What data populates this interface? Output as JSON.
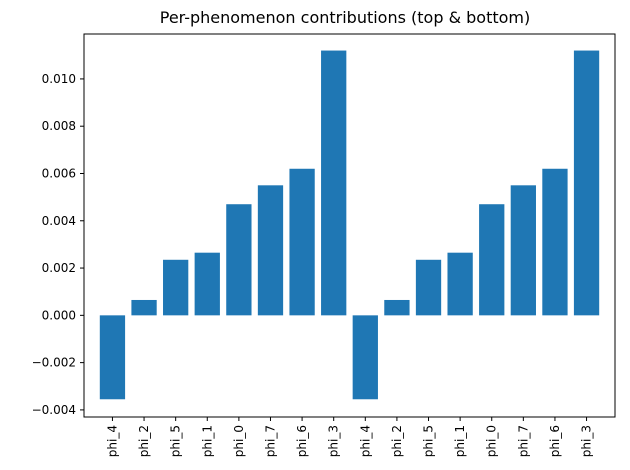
{
  "chart_data": {
    "type": "bar",
    "title": "Per-phenomenon contributions (top & bottom)",
    "xlabel": "",
    "ylabel": "",
    "categories": [
      "phi_4",
      "phi_2",
      "phi_5",
      "phi_1",
      "phi_0",
      "phi_7",
      "phi_6",
      "phi_3",
      "phi_4",
      "phi_2",
      "phi_5",
      "phi_1",
      "phi_0",
      "phi_7",
      "phi_6",
      "phi_3"
    ],
    "values": [
      -0.00355,
      0.00065,
      0.00235,
      0.00265,
      0.0047,
      0.0055,
      0.0062,
      0.0112,
      -0.00355,
      0.00065,
      0.00235,
      0.00265,
      0.0047,
      0.0055,
      0.0062,
      0.0112
    ],
    "ylim": [
      -0.0043,
      0.0119
    ],
    "yticks": [
      -0.004,
      -0.002,
      0.0,
      0.002,
      0.004,
      0.006,
      0.008,
      0.01
    ],
    "ytick_labels": [
      "−0.004",
      "−0.002",
      "0.000",
      "0.002",
      "0.004",
      "0.006",
      "0.008",
      "0.010"
    ],
    "bar_color": "#1f77b4",
    "grid": false,
    "legend": "none"
  }
}
